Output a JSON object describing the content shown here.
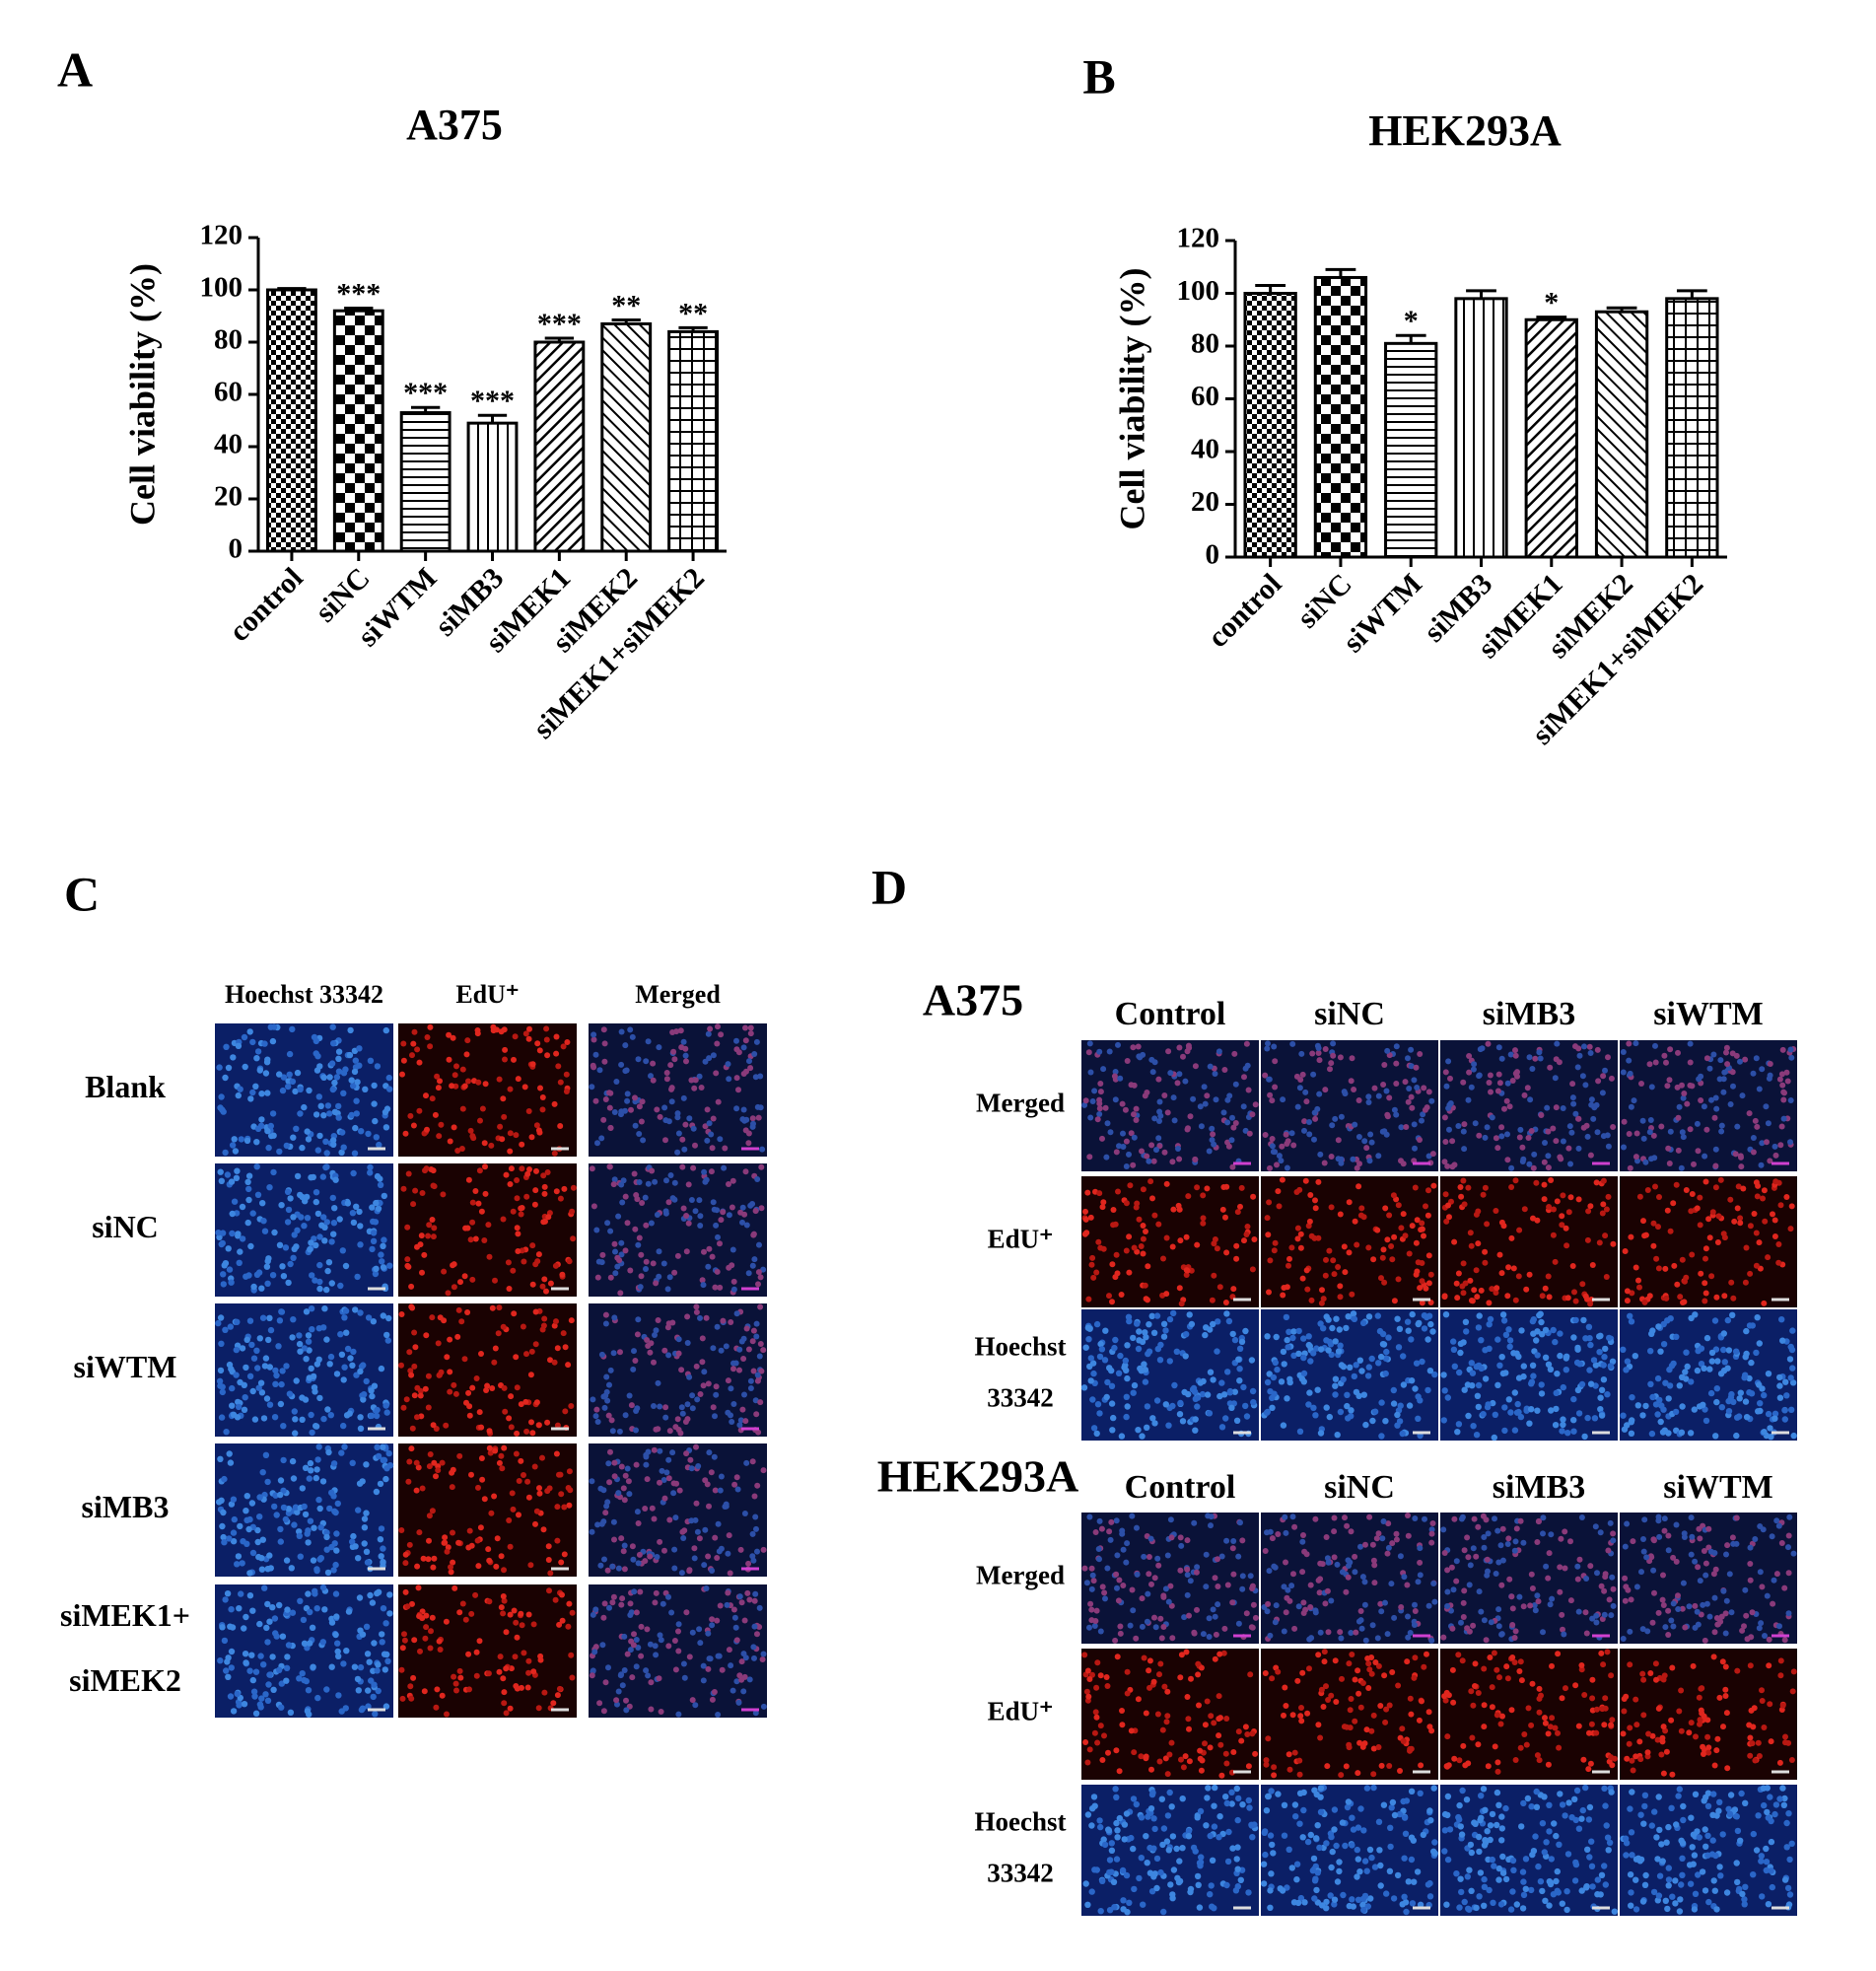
{
  "chart_data": [
    {
      "type": "bar",
      "panel_label": "A",
      "title": "A375",
      "y_label": "Cell viability (%)",
      "categories": [
        "control",
        "siNC",
        "siWTM",
        "siMB3",
        "siMEK1",
        "siMEK2",
        "siMEK1+siMEK2"
      ],
      "values": [
        100,
        92,
        53,
        49,
        80,
        87,
        84
      ],
      "errors": [
        0.5,
        1,
        2,
        3,
        1.5,
        1.5,
        1.5
      ],
      "annotations": [
        null,
        "***",
        "***",
        "***",
        "***",
        "**",
        "**"
      ],
      "ylim": [
        0,
        120
      ],
      "yticks": [
        0,
        20,
        40,
        60,
        80,
        100,
        120
      ],
      "color": "#000000"
    },
    {
      "type": "bar",
      "panel_label": "B",
      "title": "HEK293A",
      "y_label": "Cell viability (%)",
      "categories": [
        "control",
        "siNC",
        "siWTM",
        "siMB3",
        "siMEK1",
        "siMEK2",
        "siMEK1+siMEK2"
      ],
      "values": [
        100,
        106,
        81,
        98,
        90,
        93,
        98
      ],
      "errors": [
        3,
        3,
        3,
        3,
        1,
        1.5,
        3
      ],
      "annotations": [
        null,
        null,
        "*",
        null,
        "*",
        null,
        null
      ],
      "ylim": [
        0,
        120
      ],
      "yticks": [
        0,
        20,
        40,
        60,
        80,
        100,
        120
      ],
      "color": "#000000"
    }
  ],
  "panels": {
    "C": {
      "label": "C",
      "columns": [
        "Hoechst 33342",
        "EdU⁺",
        "Merged"
      ],
      "rows": [
        [
          "Blank"
        ],
        [
          "siNC"
        ],
        [
          "siWTM"
        ],
        [
          "siMB3"
        ],
        [
          "siMEK1+",
          "siMEK2"
        ]
      ]
    },
    "D": {
      "label": "D",
      "groups": [
        {
          "name": "A375",
          "columns": [
            "Control",
            "siNC",
            "siMB3",
            "siWTM"
          ],
          "rows": [
            [
              "Merged"
            ],
            [
              "EdU⁺"
            ],
            [
              "Hoechst",
              "33342"
            ]
          ]
        },
        {
          "name": "HEK293A",
          "columns": [
            "Control",
            "siNC",
            "siMB3",
            "siWTM"
          ],
          "rows": [
            [
              "Merged"
            ],
            [
              "EdU⁺"
            ],
            [
              "Hoechst",
              "33342"
            ]
          ]
        }
      ]
    }
  }
}
